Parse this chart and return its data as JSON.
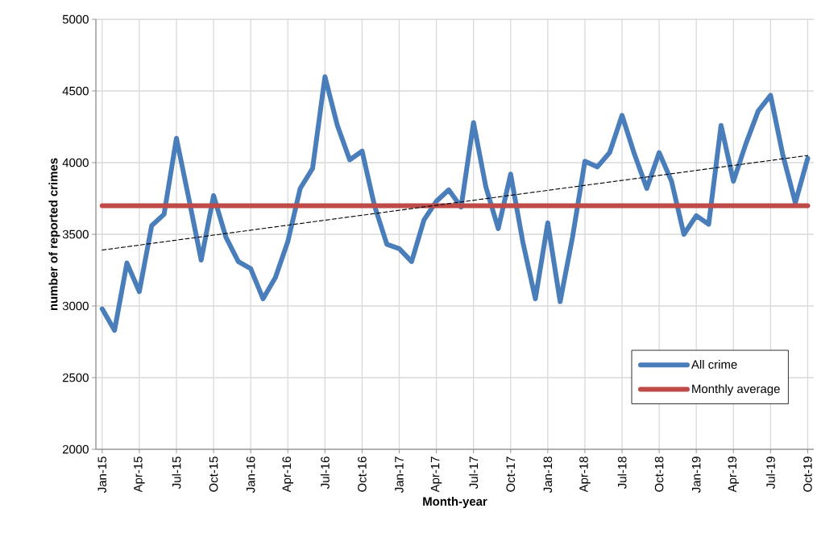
{
  "chart_data": {
    "type": "line",
    "xlabel": "Month-year",
    "ylabel": "number of reported crimes",
    "x": [
      "2015-01",
      "2015-02",
      "2015-03",
      "2015-04",
      "2015-05",
      "2015-06",
      "2015-07",
      "2015-08",
      "2015-09",
      "2015-10",
      "2015-11",
      "2015-12",
      "2016-01",
      "2016-02",
      "2016-03",
      "2016-04",
      "2016-05",
      "2016-06",
      "2016-07",
      "2016-08",
      "2016-09",
      "2016-10",
      "2016-11",
      "2016-12",
      "2017-01",
      "2017-02",
      "2017-03",
      "2017-04",
      "2017-05",
      "2017-06",
      "2017-07",
      "2017-08",
      "2017-09",
      "2017-10",
      "2017-11",
      "2017-12",
      "2018-01",
      "2018-02",
      "2018-03",
      "2018-04",
      "2018-05",
      "2018-06",
      "2018-07",
      "2018-08",
      "2018-09",
      "2018-10",
      "2018-11",
      "2018-12",
      "2019-01",
      "2019-02",
      "2019-03",
      "2019-04",
      "2019-05",
      "2019-06",
      "2019-07",
      "2019-08",
      "2019-09",
      "2019-10"
    ],
    "series": [
      {
        "name": "All crime",
        "color": "#4a7ebb",
        "values": [
          2980,
          2830,
          3300,
          3100,
          3560,
          3640,
          4170,
          3750,
          3320,
          3770,
          3480,
          3310,
          3260,
          3050,
          3200,
          3450,
          3820,
          3960,
          4600,
          4260,
          4020,
          4080,
          3700,
          3430,
          3400,
          3310,
          3600,
          3730,
          3810,
          3690,
          4280,
          3830,
          3540,
          3920,
          3440,
          3050,
          3580,
          3030,
          3480,
          4010,
          3970,
          4070,
          4330,
          4060,
          3820,
          4070,
          3870,
          3500,
          3630,
          3570,
          4260,
          3870,
          4130,
          4360,
          4470,
          4050,
          3720,
          4030
        ]
      },
      {
        "name": "Monthly average",
        "color": "#be4b48",
        "x": [
          "2015-01",
          "2019-10"
        ],
        "values": [
          3700,
          3700
        ]
      },
      {
        "color": "#000000",
        "x": [
          "2015-01",
          "2019-10"
        ],
        "values": [
          3390,
          4050
        ],
        "line_style": "dashed"
      }
    ],
    "xlim": [
      "2014-12-16",
      "2019-10-16"
    ],
    "xticks": [
      {
        "value": "2015-01",
        "label": "Jan-15"
      },
      {
        "value": "2015-04",
        "label": "Apr-15"
      },
      {
        "value": "2015-07",
        "label": "Jul-15"
      },
      {
        "value": "2015-10",
        "label": "Oct-15"
      },
      {
        "value": "2016-01",
        "label": "Jan-16"
      },
      {
        "value": "2016-04",
        "label": "Apr-16"
      },
      {
        "value": "2016-07",
        "label": "Jul-16"
      },
      {
        "value": "2016-10",
        "label": "Oct-16"
      },
      {
        "value": "2017-01",
        "label": "Jan-17"
      },
      {
        "value": "2017-04",
        "label": "Apr-17"
      },
      {
        "value": "2017-07",
        "label": "Jul-17"
      },
      {
        "value": "2017-10",
        "label": "Oct-17"
      },
      {
        "value": "2018-01",
        "label": "Jan-18"
      },
      {
        "value": "2018-04",
        "label": "Apr-18"
      },
      {
        "value": "2018-07",
        "label": "Jul-18"
      },
      {
        "value": "2018-10",
        "label": "Oct-18"
      },
      {
        "value": "2019-01",
        "label": "Jan-19"
      },
      {
        "value": "2019-04",
        "label": "Apr-19"
      },
      {
        "value": "2019-07",
        "label": "Jul-19"
      },
      {
        "value": "2019-10",
        "label": "Oct-19"
      }
    ],
    "ylim": [
      2000,
      5000
    ],
    "yticks": [
      2000,
      2500,
      3000,
      3500,
      4000,
      4500,
      5000
    ],
    "grid": true,
    "legend": "bottom right",
    "line_style": "solid"
  }
}
